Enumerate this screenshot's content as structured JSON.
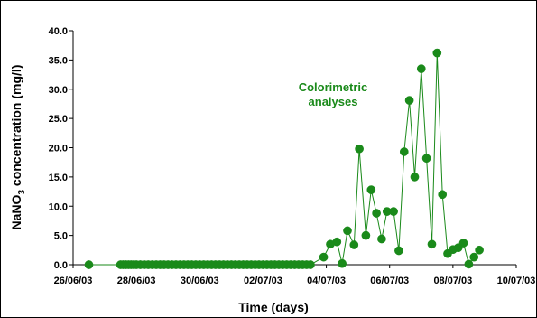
{
  "chart_data": {
    "type": "line",
    "xlabel": "Time (days)",
    "ylabel_main": "NaNO",
    "ylabel_sub": "3",
    "ylabel_rest": " concentration (mg/l)",
    "ylim": [
      0,
      40
    ],
    "xlim": [
      "2003-06-26",
      "2003-07-10"
    ],
    "x_tick_labels": [
      "26/06/03",
      "28/06/03",
      "30/06/03",
      "02/07/03",
      "04/07/03",
      "06/07/03",
      "08/07/03",
      "10/07/03"
    ],
    "x_tick_dates": [
      "2003-06-26",
      "2003-06-28",
      "2003-06-30",
      "2003-07-02",
      "2003-07-04",
      "2003-07-06",
      "2003-07-08",
      "2003-07-10"
    ],
    "y_tick_labels": [
      "0.0",
      "5.0",
      "10.0",
      "15.0",
      "20.0",
      "25.0",
      "30.0",
      "35.0",
      "40.0"
    ],
    "grid": false,
    "annotation_line1": "Colorimetric",
    "annotation_line2": "analyses",
    "series_color": "#1a8a1a",
    "series": [
      {
        "points": [
          [
            "2003-06-26 12:00",
            0.0
          ],
          [
            "2003-06-27 12:00",
            0.0
          ],
          [
            "2003-06-27 14:00",
            0.0
          ],
          [
            "2003-06-27 16:00",
            0.0
          ],
          [
            "2003-06-27 18:00",
            0.0
          ],
          [
            "2003-06-27 20:00",
            0.0
          ],
          [
            "2003-06-27 22:00",
            0.0
          ],
          [
            "2003-06-28 00:00",
            0.0
          ],
          [
            "2003-06-28 03:00",
            0.0
          ],
          [
            "2003-06-28 06:00",
            0.0
          ],
          [
            "2003-06-28 09:00",
            0.0
          ],
          [
            "2003-06-28 12:00",
            0.0
          ],
          [
            "2003-06-28 15:00",
            0.0
          ],
          [
            "2003-06-28 18:00",
            0.0
          ],
          [
            "2003-06-28 21:00",
            0.0
          ],
          [
            "2003-06-29 00:00",
            0.0
          ],
          [
            "2003-06-29 03:00",
            0.0
          ],
          [
            "2003-06-29 06:00",
            0.0
          ],
          [
            "2003-06-29 09:00",
            0.0
          ],
          [
            "2003-06-29 12:00",
            0.0
          ],
          [
            "2003-06-29 15:00",
            0.0
          ],
          [
            "2003-06-29 18:00",
            0.0
          ],
          [
            "2003-06-29 21:00",
            0.0
          ],
          [
            "2003-06-30 00:00",
            0.0
          ],
          [
            "2003-06-30 03:00",
            0.0
          ],
          [
            "2003-06-30 06:00",
            0.0
          ],
          [
            "2003-06-30 09:00",
            0.0
          ],
          [
            "2003-06-30 12:00",
            0.0
          ],
          [
            "2003-06-30 15:00",
            0.0
          ],
          [
            "2003-06-30 18:00",
            0.0
          ],
          [
            "2003-06-30 21:00",
            0.0
          ],
          [
            "2003-07-01 00:00",
            0.0
          ],
          [
            "2003-07-01 03:00",
            0.0
          ],
          [
            "2003-07-01 06:00",
            0.0
          ],
          [
            "2003-07-01 09:00",
            0.0
          ],
          [
            "2003-07-01 12:00",
            0.0
          ],
          [
            "2003-07-01 15:00",
            0.0
          ],
          [
            "2003-07-01 18:00",
            0.0
          ],
          [
            "2003-07-01 21:00",
            0.0
          ],
          [
            "2003-07-02 00:00",
            0.0
          ],
          [
            "2003-07-02 03:00",
            0.0
          ],
          [
            "2003-07-02 06:00",
            0.0
          ],
          [
            "2003-07-02 09:00",
            0.0
          ],
          [
            "2003-07-02 12:00",
            0.0
          ],
          [
            "2003-07-02 15:00",
            0.0
          ],
          [
            "2003-07-02 18:00",
            0.0
          ],
          [
            "2003-07-02 21:00",
            0.0
          ],
          [
            "2003-07-03 00:00",
            0.0
          ],
          [
            "2003-07-03 03:00",
            0.0
          ],
          [
            "2003-07-03 06:00",
            0.0
          ],
          [
            "2003-07-03 09:00",
            0.0
          ],
          [
            "2003-07-03 12:00",
            0.0
          ],
          [
            "2003-07-03 22:00",
            1.3
          ],
          [
            "2003-07-04 03:00",
            3.5
          ],
          [
            "2003-07-04 08:00",
            3.9
          ],
          [
            "2003-07-04 12:00",
            0.2
          ],
          [
            "2003-07-04 16:00",
            5.8
          ],
          [
            "2003-07-04 21:00",
            3.4
          ],
          [
            "2003-07-05 01:00",
            19.8
          ],
          [
            "2003-07-05 06:00",
            5.0
          ],
          [
            "2003-07-05 10:00",
            12.8
          ],
          [
            "2003-07-05 14:00",
            8.8
          ],
          [
            "2003-07-05 18:00",
            4.4
          ],
          [
            "2003-07-05 22:00",
            9.1
          ],
          [
            "2003-07-06 03:00",
            9.1
          ],
          [
            "2003-07-06 07:00",
            2.4
          ],
          [
            "2003-07-06 11:00",
            19.3
          ],
          [
            "2003-07-06 15:00",
            28.1
          ],
          [
            "2003-07-06 19:00",
            15.0
          ],
          [
            "2003-07-07 00:00",
            33.5
          ],
          [
            "2003-07-07 04:00",
            18.2
          ],
          [
            "2003-07-07 08:00",
            3.5
          ],
          [
            "2003-07-07 12:00",
            36.2
          ],
          [
            "2003-07-07 16:00",
            12.0
          ],
          [
            "2003-07-07 20:00",
            1.9
          ],
          [
            "2003-07-08 00:00",
            2.6
          ],
          [
            "2003-07-08 04:00",
            2.9
          ],
          [
            "2003-07-08 08:00",
            3.7
          ],
          [
            "2003-07-08 12:00",
            0.1
          ],
          [
            "2003-07-08 16:00",
            1.3
          ],
          [
            "2003-07-08 20:00",
            2.5
          ]
        ]
      }
    ]
  }
}
